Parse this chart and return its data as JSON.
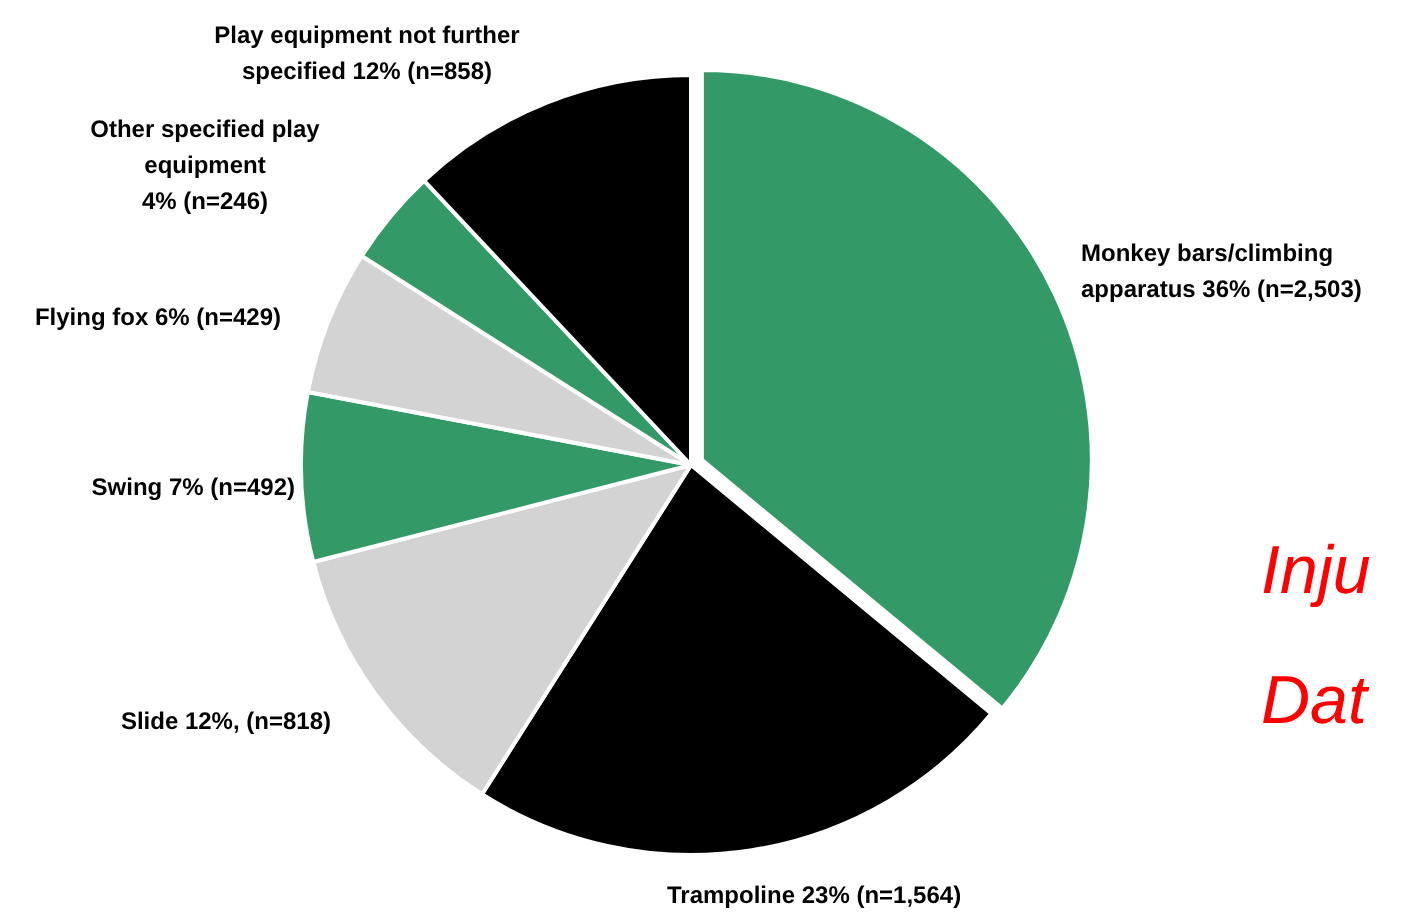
{
  "chart_data": {
    "type": "pie",
    "categories": [
      "Monkey bars/climbing\napparatus 36% (n=2,503)",
      "Trampoline 23% (n=1,564)",
      "Slide 12%, (n=818)",
      "Swing 7% (n=492)",
      "Flying fox 6% (n=429)",
      "Other specified play\nequipment\n4% (n=246)",
      "Play equipment not further\nspecified 12% (n=858)"
    ],
    "values": [
      36,
      23,
      12,
      7,
      6,
      4,
      12
    ],
    "colors": [
      "#339966",
      "#000000",
      "#d3d3d3",
      "#339966",
      "#d3d3d3",
      "#339966",
      "#000000"
    ],
    "annotations": [
      "Inju",
      "Dat"
    ]
  }
}
